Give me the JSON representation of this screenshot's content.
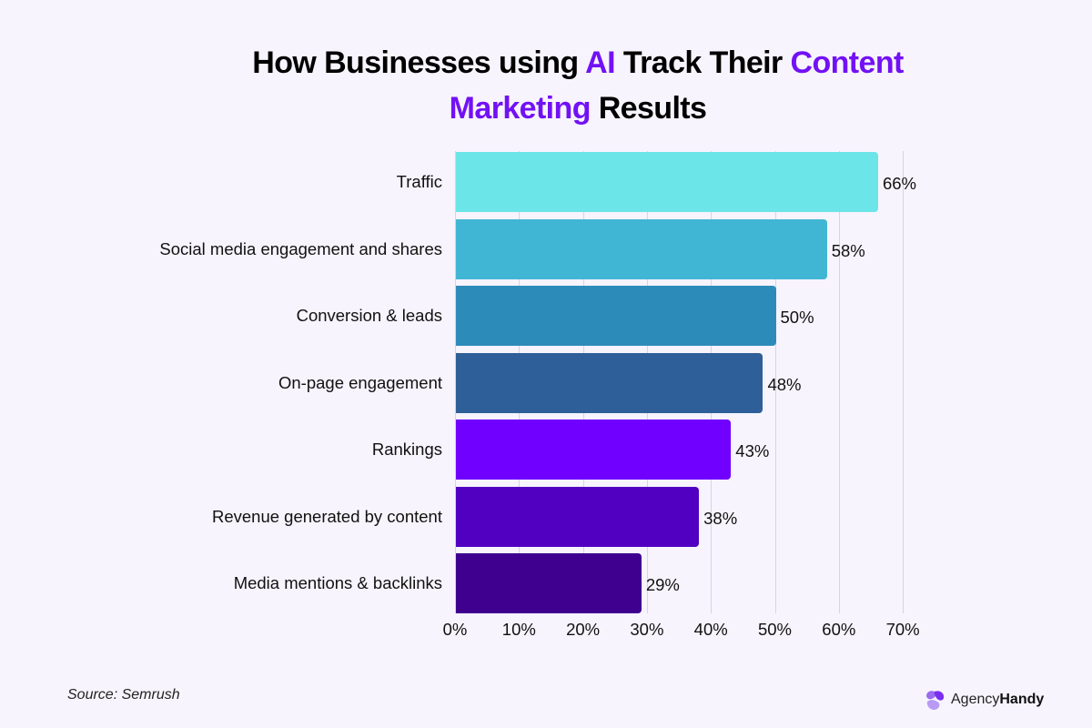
{
  "title": {
    "parts": [
      {
        "text": "How Businesses using ",
        "highlight": false
      },
      {
        "text": "AI",
        "highlight": true
      },
      {
        "text": " Track Their ",
        "highlight": false
      },
      {
        "text": "Content",
        "highlight": true
      },
      {
        "text": " ",
        "highlight": false
      },
      {
        "text": "Marketing",
        "highlight": true
      },
      {
        "text": " Results",
        "highlight": false
      }
    ],
    "line1_a": "How Businesses using ",
    "line1_b": "AI",
    "line1_c": " Track Their ",
    "line1_d": "Content",
    "line2_a": "Marketing",
    "line2_b": " Results"
  },
  "colors": {
    "background": "#f7f4fd",
    "highlight": "#7211f5",
    "grid": "#d8d4e2"
  },
  "chart_data": {
    "type": "bar",
    "orientation": "horizontal",
    "title": "How Businesses using AI Track Their Content Marketing Results",
    "xlabel": "",
    "ylabel": "",
    "xlim": [
      0,
      70
    ],
    "grid": true,
    "legend": null,
    "categories": [
      "Traffic",
      "Social media engagement and shares",
      "Conversion & leads",
      "On-page engagement",
      "Rankings",
      "Revenue generated by content",
      "Media mentions & backlinks"
    ],
    "values": [
      66,
      58,
      50,
      48,
      43,
      38,
      29
    ],
    "value_labels": [
      "66%",
      "58%",
      "50%",
      "48%",
      "43%",
      "38%",
      "29%"
    ],
    "bar_colors": [
      "#6ce5e8",
      "#41b6d4",
      "#2d8bba",
      "#2e5f98",
      "#7000ff",
      "#5100c1",
      "#3f008f"
    ],
    "x_ticks": [
      "0%",
      "10%",
      "20%",
      "30%",
      "40%",
      "50%",
      "60%",
      "70%"
    ],
    "x_tick_values": [
      0,
      10,
      20,
      30,
      40,
      50,
      60,
      70
    ]
  },
  "footer": {
    "source": "Source: Semrush",
    "logo_text_regular": "Agency",
    "logo_text_bold": "Handy"
  }
}
